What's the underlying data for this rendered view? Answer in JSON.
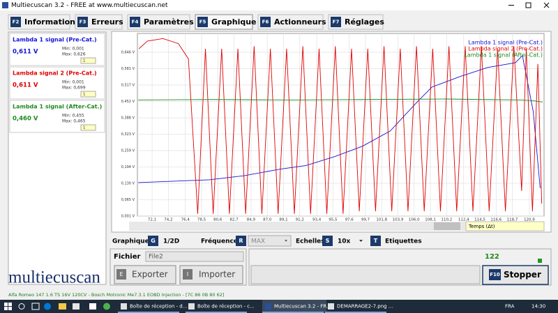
{
  "window": {
    "title": "Multiecuscan 3.2 - FREE at www.multiecuscan.net"
  },
  "tabs": [
    {
      "key": "F2",
      "label": "Information"
    },
    {
      "key": "F3",
      "label": "Erreurs"
    },
    {
      "key": "F4",
      "label": "Paramètres"
    },
    {
      "key": "F5",
      "label": "Graphique"
    },
    {
      "key": "F6",
      "label": "Actionneurs"
    },
    {
      "key": "F7",
      "label": "Réglages"
    }
  ],
  "active_tab": 3,
  "sensors": [
    {
      "name": "Lambda 1 signal (Pre-Cat.)",
      "value": "0,611 V",
      "min": "Min: 0,001",
      "max": "Max: 0,626",
      "scale": "1",
      "color": "#1414d8"
    },
    {
      "name": "Lambda signal 2 (Pre-Cat.)",
      "value": "0,611 V",
      "min": "Min: 0,001",
      "max": "Max: 0,699",
      "scale": "1",
      "color": "#e00000"
    },
    {
      "name": "Lambda 1 signal (After-Cat.)",
      "value": "0,460 V",
      "min": "Min: 0,455",
      "max": "Max: 0,465",
      "scale": "1",
      "color": "#1e8a1e"
    }
  ],
  "controls": {
    "graphs_label": "Graphiques",
    "graphs_key": "G",
    "graphs_value": "1/2D",
    "frequency_label": "Fréquence",
    "frequency_key": "R",
    "frequency_value": "MAX",
    "scales_label": "Echelles",
    "scales_key": "S",
    "scales_value": "10x",
    "labels_key": "T",
    "labels_label": "Etiquettes"
  },
  "file": {
    "label": "Fichier",
    "value": "File2",
    "export_key": "E",
    "export_label": "Exporter",
    "import_key": "I",
    "import_label": "Importer"
  },
  "counter": 122,
  "stop_button": {
    "key": "F10",
    "label": "Stopper"
  },
  "logo": "multiecuscan",
  "status_bar": "Alfa Romeo 147 1.6 TS 16V 120CV - Bosch Motronic Me7.3.1 EOBD Injection - [7C 86 0B 80 62]",
  "taskbar": {
    "items": [
      "Boîte de réception - d...",
      "Boîte de réception - c...",
      "Multiecuscan 3.2 - FR...",
      "DEMARRAGE2-7.png ..."
    ],
    "language": "FRA",
    "time": "14:30"
  },
  "chart_data": {
    "type": "line",
    "xlabel": "Temps (Δt)",
    "xlim": [
      70.2,
      122.8
    ],
    "ylim": [
      0.001,
      0.72
    ],
    "grid": true,
    "legend": "top-right",
    "xticks": [
      {
        "value": 72.1,
        "label": "72,1"
      },
      {
        "value": 74.2,
        "label": "74,2"
      },
      {
        "value": 76.4,
        "label": "76,4"
      },
      {
        "value": 78.5,
        "label": "78,5"
      },
      {
        "value": 80.6,
        "label": "80,6"
      },
      {
        "value": 82.7,
        "label": "82,7"
      },
      {
        "value": 84.9,
        "label": "84,9"
      },
      {
        "value": 87.0,
        "label": "87,0"
      },
      {
        "value": 89.1,
        "label": "89,1"
      },
      {
        "value": 91.2,
        "label": "91,2"
      },
      {
        "value": 93.4,
        "label": "93,4"
      },
      {
        "value": 95.5,
        "label": "95,5"
      },
      {
        "value": 97.6,
        "label": "97,6"
      },
      {
        "value": 99.7,
        "label": "99,7"
      },
      {
        "value": 101.8,
        "label": "101,8"
      },
      {
        "value": 103.9,
        "label": "103,9"
      },
      {
        "value": 106.0,
        "label": "106,0"
      },
      {
        "value": 108.1,
        "label": "108,1"
      },
      {
        "value": 110.2,
        "label": "110,2"
      },
      {
        "value": 112.4,
        "label": "112,4"
      },
      {
        "value": 114.5,
        "label": "114,5"
      },
      {
        "value": 116.6,
        "label": "116,6"
      },
      {
        "value": 118.7,
        "label": "118,7"
      },
      {
        "value": 120.9,
        "label": "120,9"
      }
    ],
    "yticks": [
      {
        "value": 0.001,
        "label": "0,001 V"
      },
      {
        "value": 0.065,
        "label": "0,065 V"
      },
      {
        "value": 0.13,
        "label": "0,130 V"
      },
      {
        "value": 0.194,
        "label": "0,194 V"
      },
      {
        "value": 0.259,
        "label": "0,259 V"
      },
      {
        "value": 0.323,
        "label": "0,323 V"
      },
      {
        "value": 0.388,
        "label": "0,388 V"
      },
      {
        "value": 0.452,
        "label": "0,452 V"
      },
      {
        "value": 0.517,
        "label": "0,517 V"
      },
      {
        "value": 0.581,
        "label": "0,581 V"
      },
      {
        "value": 0.646,
        "label": "0,646 V"
      }
    ],
    "series": [
      {
        "name": "Lambda 1 signal (Pre-Cat.)",
        "color": "#1414d8",
        "x": [
          70.3,
          79.5,
          84.0,
          88.5,
          92.0,
          95.7,
          99.3,
          102.9,
          106.5,
          108.3,
          111.9,
          115.5,
          119.1,
          120.0,
          121.4,
          122.3
        ],
        "values": [
          0.133,
          0.144,
          0.16,
          0.185,
          0.2,
          0.235,
          0.276,
          0.336,
          0.454,
          0.509,
          0.55,
          0.586,
          0.605,
          0.633,
          0.413,
          0.111
        ]
      },
      {
        "name": "Lambda signal 2 (Pre-Cat.)",
        "color": "#e00000",
        "x": [
          70.4,
          71.5,
          73.5,
          75.5,
          76.8,
          78.0,
          79.0,
          80.0,
          81.1,
          82.1,
          83.2,
          84.2,
          85.3,
          86.3,
          87.4,
          88.4,
          89.5,
          90.5,
          91.6,
          92.6,
          93.7,
          94.7,
          95.8,
          96.8,
          97.9,
          98.9,
          100.0,
          101.0,
          102.1,
          103.1,
          104.2,
          105.2,
          106.3,
          107.3,
          108.4,
          109.4,
          110.5,
          111.5,
          112.6,
          113.6,
          114.7,
          115.7,
          116.8,
          117.8,
          118.9,
          119.9,
          120.5,
          121.3,
          122.0,
          122.5
        ],
        "values": [
          0.66,
          0.69,
          0.7,
          0.68,
          0.62,
          0.01,
          0.66,
          0.01,
          0.66,
          0.01,
          0.66,
          0.01,
          0.67,
          0.01,
          0.66,
          0.01,
          0.66,
          0.01,
          0.67,
          0.01,
          0.66,
          0.01,
          0.67,
          0.01,
          0.66,
          0.02,
          0.66,
          0.02,
          0.67,
          0.02,
          0.66,
          0.02,
          0.67,
          0.02,
          0.66,
          0.02,
          0.67,
          0.02,
          0.67,
          0.02,
          0.67,
          0.02,
          0.66,
          0.02,
          0.67,
          0.1,
          0.66,
          0.02,
          0.6,
          0.05
        ]
      },
      {
        "name": "Lambda 1 signal (After-Cat.)",
        "color": "#1e8a1e",
        "x": [
          70.3,
          80.0,
          90.0,
          100.0,
          110.0,
          115.0,
          120.0,
          121.5,
          122.6
        ],
        "values": [
          0.458,
          0.46,
          0.458,
          0.46,
          0.462,
          0.46,
          0.458,
          0.455,
          0.45
        ]
      }
    ]
  }
}
